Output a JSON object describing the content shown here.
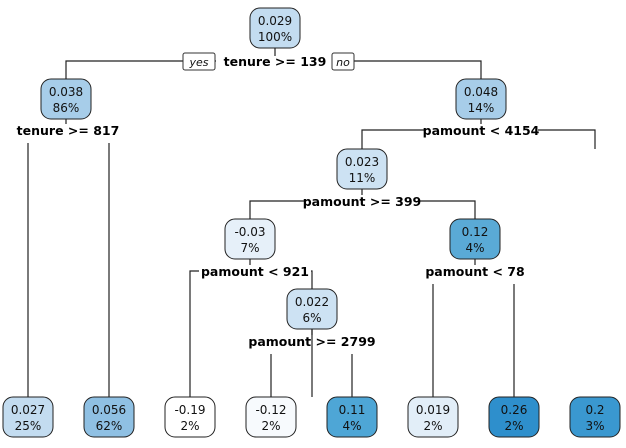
{
  "nodes": [
    {
      "id": "n1",
      "value": "0.029",
      "pct": "100%",
      "fill": "#c3dcf0"
    },
    {
      "id": "n2",
      "value": "0.038",
      "pct": "86%",
      "fill": "#a7cde9"
    },
    {
      "id": "n3",
      "value": "0.048",
      "pct": "14%",
      "fill": "#a7cde9"
    },
    {
      "id": "n6",
      "value": "0.023",
      "pct": "11%",
      "fill": "#cde2f3"
    },
    {
      "id": "n12",
      "value": "-0.03",
      "pct": "7%",
      "fill": "#e6f0f9"
    },
    {
      "id": "n13",
      "value": "0.12",
      "pct": "4%",
      "fill": "#5aaad6"
    },
    {
      "id": "n25",
      "value": "0.022",
      "pct": "6%",
      "fill": "#cde2f3"
    },
    {
      "id": "l1",
      "value": "0.027",
      "pct": "25%",
      "fill": "#c3dcf0"
    },
    {
      "id": "l2",
      "value": "0.056",
      "pct": "62%",
      "fill": "#8fc0e3"
    },
    {
      "id": "l3",
      "value": "-0.19",
      "pct": "2%",
      "fill": "#ffffff"
    },
    {
      "id": "l4",
      "value": "-0.12",
      "pct": "2%",
      "fill": "#f7fafd"
    },
    {
      "id": "l5",
      "value": "0.11",
      "pct": "4%",
      "fill": "#4ea6d6"
    },
    {
      "id": "l6",
      "value": "0.019",
      "pct": "2%",
      "fill": "#e2eef8"
    },
    {
      "id": "l7",
      "value": "0.26",
      "pct": "2%",
      "fill": "#2e8fcc"
    },
    {
      "id": "l8",
      "value": "0.2",
      "pct": "3%",
      "fill": "#3a98d0"
    }
  ],
  "splits": [
    {
      "id": "s1",
      "label": "tenure >= 139"
    },
    {
      "id": "s2",
      "label": "tenure >= 817"
    },
    {
      "id": "s3",
      "label": "pamount < 4154"
    },
    {
      "id": "s6",
      "label": "pamount >= 399"
    },
    {
      "id": "s12",
      "label": "pamount < 921"
    },
    {
      "id": "s13",
      "label": "pamount < 78"
    },
    {
      "id": "s25",
      "label": "pamount >= 2799"
    }
  ],
  "branch_labels": {
    "yes": "yes",
    "no": "no"
  }
}
